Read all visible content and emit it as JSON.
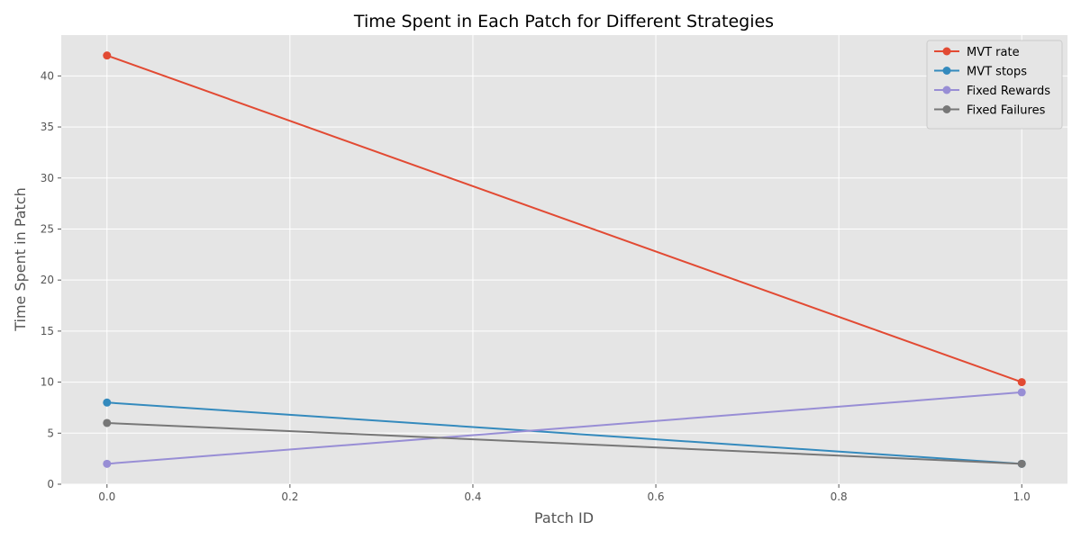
{
  "chart_data": {
    "type": "line",
    "title": "Time Spent in Each Patch for Different Strategies",
    "xlabel": "Patch ID",
    "ylabel": "Time Spent in Patch",
    "x": [
      0.0,
      1.0
    ],
    "xlim": [
      -0.05,
      1.05
    ],
    "ylim": [
      0,
      44
    ],
    "xticks": [
      0.0,
      0.2,
      0.4,
      0.6,
      0.8,
      1.0
    ],
    "xtick_labels": [
      "0.0",
      "0.2",
      "0.4",
      "0.6",
      "0.8",
      "1.0"
    ],
    "yticks": [
      0,
      5,
      10,
      15,
      20,
      25,
      30,
      35,
      40
    ],
    "ytick_labels": [
      "0",
      "5",
      "10",
      "15",
      "20",
      "25",
      "30",
      "35",
      "40"
    ],
    "grid": true,
    "legend_position": "top-right",
    "series": [
      {
        "name": "MVT rate",
        "values": [
          42,
          10
        ],
        "color": "#E24A33"
      },
      {
        "name": "MVT stops",
        "values": [
          8,
          2
        ],
        "color": "#348ABD"
      },
      {
        "name": "Fixed Rewards",
        "values": [
          2,
          9
        ],
        "color": "#988ED5"
      },
      {
        "name": "Fixed Failures",
        "values": [
          6,
          2
        ],
        "color": "#777777"
      }
    ]
  }
}
